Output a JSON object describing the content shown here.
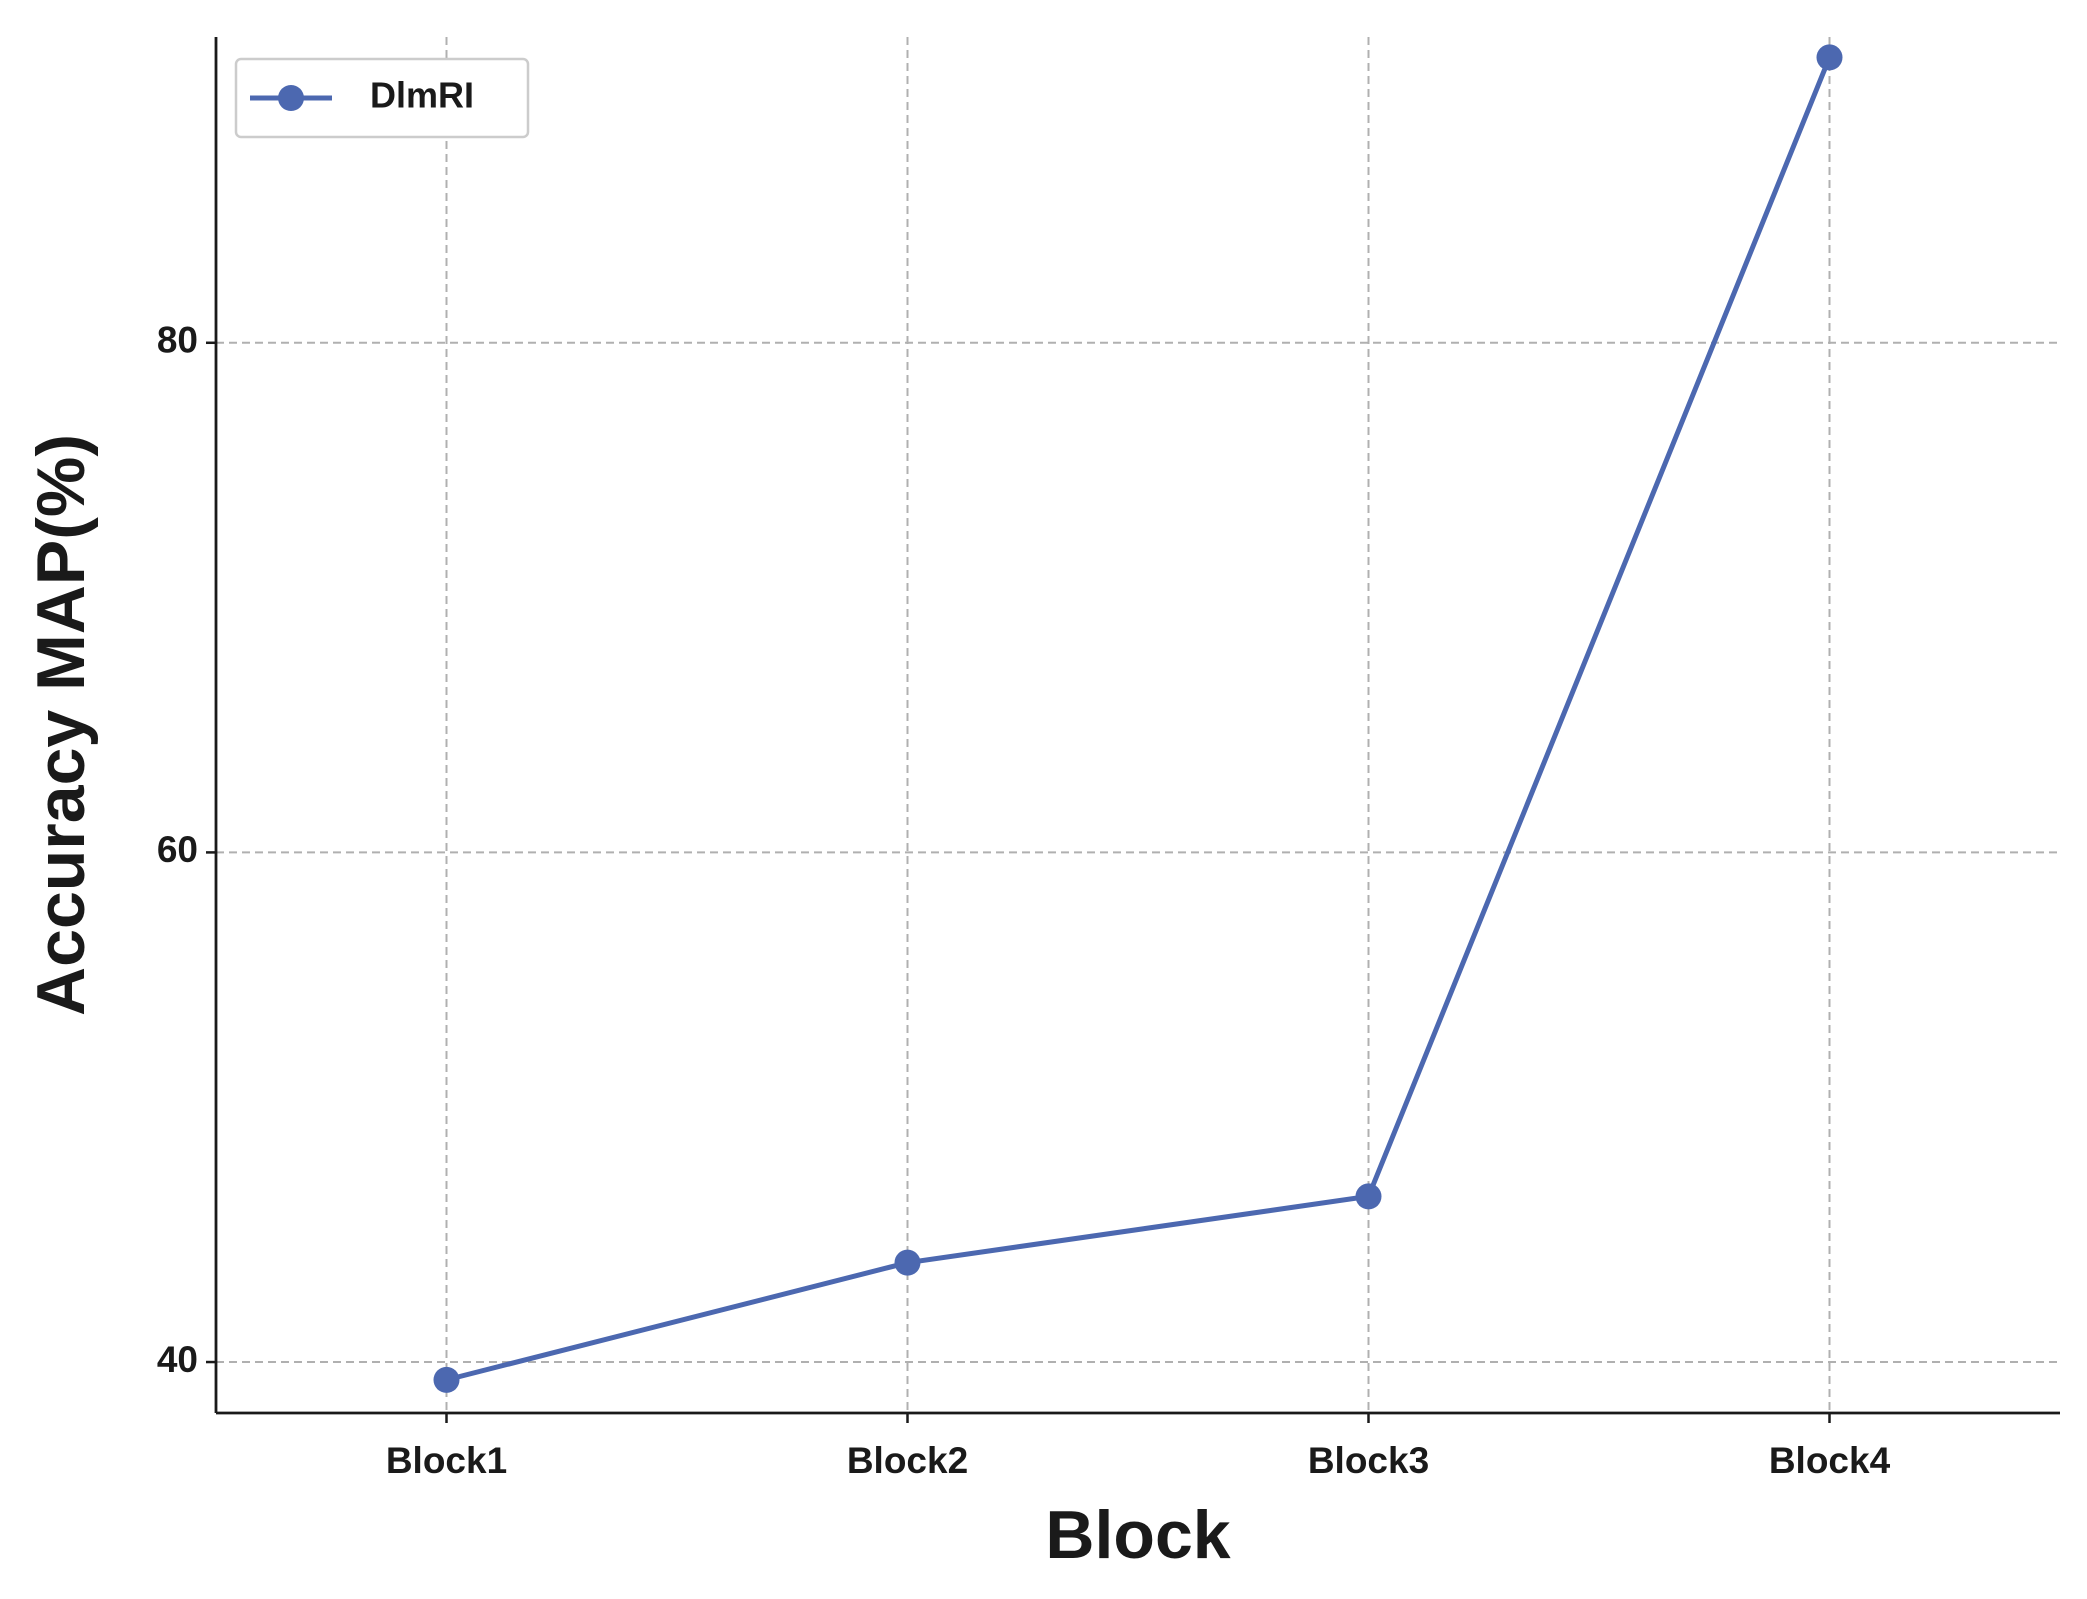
{
  "chart_data": {
    "type": "line",
    "x_label": "Block",
    "y_label": "Accuracy MAP(%)",
    "categories": [
      "Block1",
      "Block2",
      "Block3",
      "Block4"
    ],
    "series": [
      {
        "name": "DlmRI",
        "color": "#4c68b0",
        "values": [
          39.3,
          43.9,
          46.5,
          91.2
        ]
      }
    ],
    "ylim": [
      38,
      92
    ],
    "yticks": [
      40,
      60,
      80
    ],
    "grid": true,
    "legend": "upper left"
  }
}
